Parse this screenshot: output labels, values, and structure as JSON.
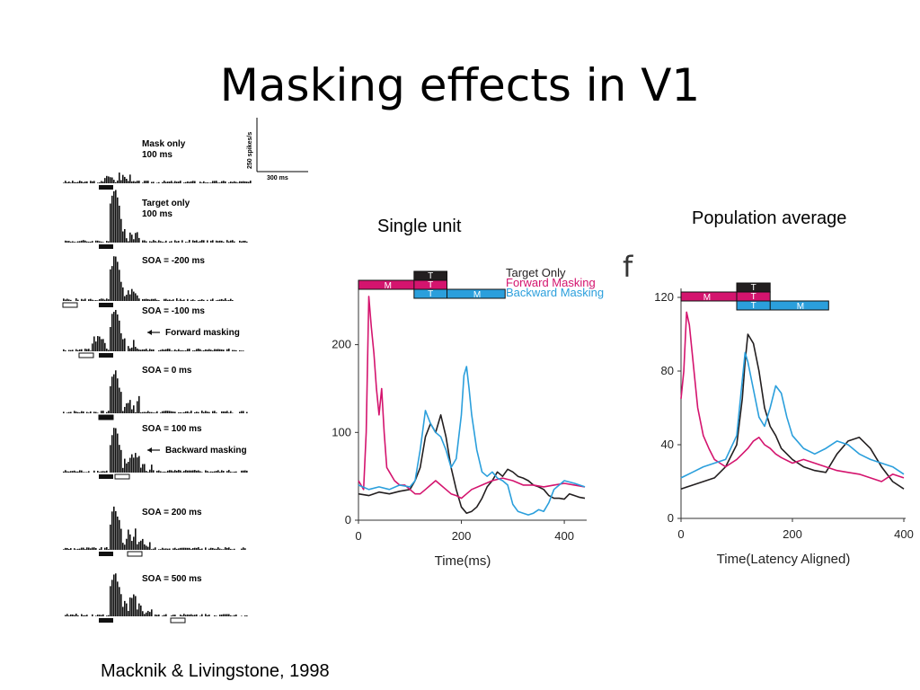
{
  "slide": {
    "title": "Masking effects in V1",
    "caption_single": "Single unit",
    "caption_population": "Population average",
    "citation": "Macknik & Livingstone, 1998",
    "panel_letter": "f"
  },
  "psth": {
    "scale_y": "250 spikes/s",
    "scale_x": "300 ms",
    "rows": [
      {
        "label": "Mask only\n100 ms",
        "arrow": ""
      },
      {
        "label": "Target only\n100 ms",
        "arrow": ""
      },
      {
        "label": "SOA = -200 ms",
        "arrow": ""
      },
      {
        "label": "SOA = -100 ms",
        "arrow": "Forward masking"
      },
      {
        "label": "SOA = 0 ms",
        "arrow": ""
      },
      {
        "label": "SOA = 100 ms",
        "arrow": "Backward masking"
      },
      {
        "label": "SOA = 200 ms",
        "arrow": ""
      },
      {
        "label": "SOA = 500 ms",
        "arrow": ""
      }
    ]
  },
  "colors": {
    "target": "#231f20",
    "forward": "#d4146e",
    "backward": "#2b9fdc"
  },
  "stimulus_tags": {
    "mask": "M",
    "target": "T"
  },
  "chart_data": [
    {
      "type": "line",
      "title": "",
      "xlabel": "Time(ms)",
      "ylabel": "",
      "xlim": [
        0,
        440
      ],
      "ylim": [
        0,
        260
      ],
      "xticks": [
        0,
        200,
        400
      ],
      "yticks": [
        0,
        100,
        200
      ],
      "legend": [
        "Target Only",
        "Forward Masking",
        "Backward Masking"
      ],
      "series": [
        {
          "name": "Target Only",
          "color": "#231f20",
          "x": [
            0,
            20,
            40,
            60,
            80,
            100,
            110,
            120,
            130,
            140,
            150,
            160,
            170,
            180,
            190,
            200,
            210,
            220,
            230,
            240,
            250,
            260,
            270,
            280,
            290,
            300,
            310,
            320,
            330,
            340,
            350,
            360,
            370,
            380,
            390,
            400,
            410,
            420,
            430,
            440
          ],
          "y": [
            30,
            28,
            32,
            30,
            33,
            35,
            45,
            60,
            95,
            110,
            100,
            120,
            95,
            60,
            35,
            15,
            8,
            10,
            15,
            25,
            38,
            45,
            55,
            50,
            58,
            55,
            50,
            48,
            45,
            40,
            38,
            35,
            28,
            25,
            25,
            24,
            30,
            28,
            26,
            25
          ]
        },
        {
          "name": "Forward Masking",
          "color": "#d4146e",
          "x": [
            0,
            10,
            15,
            20,
            25,
            30,
            35,
            40,
            45,
            50,
            55,
            60,
            70,
            80,
            90,
            100,
            110,
            120,
            130,
            140,
            150,
            160,
            170,
            180,
            190,
            200,
            210,
            220,
            240,
            260,
            280,
            300,
            320,
            340,
            360,
            380,
            400,
            420,
            440
          ],
          "y": [
            45,
            35,
            100,
            255,
            220,
            190,
            150,
            120,
            150,
            100,
            60,
            55,
            45,
            40,
            40,
            35,
            30,
            30,
            35,
            40,
            45,
            40,
            35,
            30,
            28,
            25,
            30,
            35,
            40,
            45,
            48,
            45,
            40,
            40,
            38,
            40,
            42,
            40,
            38
          ]
        },
        {
          "name": "Backward Masking",
          "color": "#2b9fdc",
          "x": [
            0,
            20,
            40,
            60,
            80,
            100,
            110,
            120,
            130,
            140,
            150,
            160,
            170,
            180,
            190,
            200,
            205,
            210,
            215,
            220,
            230,
            240,
            250,
            260,
            270,
            280,
            290,
            300,
            310,
            320,
            330,
            340,
            350,
            360,
            370,
            380,
            390,
            400,
            420,
            440
          ],
          "y": [
            40,
            35,
            38,
            35,
            40,
            38,
            45,
            80,
            125,
            110,
            100,
            95,
            80,
            60,
            70,
            120,
            165,
            175,
            150,
            120,
            80,
            55,
            50,
            55,
            48,
            45,
            40,
            18,
            10,
            8,
            6,
            8,
            12,
            10,
            20,
            35,
            40,
            45,
            42,
            38
          ]
        }
      ]
    },
    {
      "type": "line",
      "title": "",
      "xlabel": "Time(Latency Aligned)",
      "ylabel": "",
      "xlim": [
        0,
        400
      ],
      "ylim": [
        0,
        120
      ],
      "xticks": [
        0,
        200,
        400
      ],
      "yticks": [
        0,
        40,
        80,
        120
      ],
      "series": [
        {
          "name": "Target Only",
          "color": "#231f20",
          "x": [
            0,
            20,
            40,
            60,
            80,
            100,
            110,
            115,
            120,
            130,
            140,
            150,
            160,
            170,
            180,
            200,
            220,
            240,
            260,
            280,
            300,
            320,
            340,
            360,
            380,
            400
          ],
          "y": [
            16,
            18,
            20,
            22,
            28,
            40,
            65,
            85,
            100,
            95,
            80,
            60,
            50,
            45,
            38,
            32,
            28,
            26,
            25,
            35,
            42,
            44,
            38,
            28,
            20,
            16
          ]
        },
        {
          "name": "Forward Masking",
          "color": "#d4146e",
          "x": [
            0,
            5,
            10,
            15,
            20,
            25,
            30,
            40,
            50,
            60,
            70,
            80,
            90,
            100,
            110,
            120,
            130,
            140,
            150,
            160,
            170,
            180,
            200,
            220,
            240,
            260,
            280,
            300,
            320,
            340,
            360,
            380,
            400
          ],
          "y": [
            65,
            80,
            112,
            105,
            90,
            75,
            60,
            45,
            38,
            32,
            30,
            28,
            30,
            32,
            35,
            38,
            42,
            44,
            40,
            38,
            35,
            33,
            30,
            32,
            30,
            28,
            26,
            25,
            24,
            22,
            20,
            24,
            22
          ]
        },
        {
          "name": "Backward Masking",
          "color": "#2b9fdc",
          "x": [
            0,
            20,
            40,
            60,
            80,
            100,
            110,
            115,
            120,
            130,
            140,
            150,
            160,
            170,
            180,
            190,
            200,
            220,
            240,
            260,
            280,
            300,
            320,
            340,
            360,
            380,
            400
          ],
          "y": [
            22,
            25,
            28,
            30,
            32,
            45,
            75,
            90,
            85,
            70,
            55,
            50,
            60,
            72,
            68,
            55,
            45,
            38,
            35,
            38,
            42,
            40,
            35,
            32,
            30,
            28,
            24
          ]
        }
      ]
    }
  ]
}
